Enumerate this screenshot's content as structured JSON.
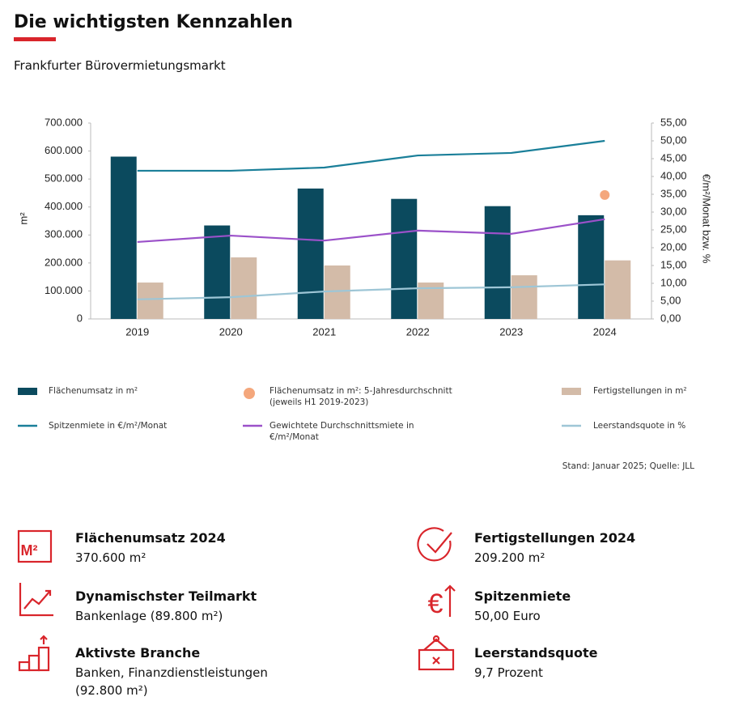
{
  "header": {
    "title": "Die wichtigsten Kennzahlen",
    "subtitle": "Frankfurter Bürovermietungsmarkt"
  },
  "chart_data": {
    "type": "bar",
    "categories": [
      "2019",
      "2020",
      "2021",
      "2022",
      "2023",
      "2024"
    ],
    "ylabel": "m²",
    "y2label": "€/m²/Monat bzw. %",
    "ylim": [
      0,
      700000
    ],
    "yticks": [
      0,
      {
        "value": 100000,
        "label": "100.000"
      },
      {
        "value": 200000,
        "label": "200.000"
      },
      {
        "value": 300000,
        "label": "300.000"
      },
      {
        "value": 400000,
        "label": "400.000"
      },
      {
        "value": 500000,
        "label": "500.000"
      },
      {
        "value": 600000,
        "label": "600.000"
      },
      {
        "value": 700000,
        "label": "700.000"
      }
    ],
    "y2lim": [
      0,
      55
    ],
    "y2ticks": [
      {
        "value": 0,
        "label": "0,00"
      },
      {
        "value": 5,
        "label": "5,00"
      },
      {
        "value": 10,
        "label": "10,00"
      },
      {
        "value": 15,
        "label": "15,00"
      },
      {
        "value": 20,
        "label": "20,00"
      },
      {
        "value": 25,
        "label": "25,00"
      },
      {
        "value": 30,
        "label": "30,00"
      },
      {
        "value": 35,
        "label": "35,00"
      },
      {
        "value": 40,
        "label": "40,00"
      },
      {
        "value": 45,
        "label": "45,00"
      },
      {
        "value": 50,
        "label": "50,00"
      },
      {
        "value": 55,
        "label": "55,00"
      }
    ],
    "series": [
      {
        "name": "Flächenumsatz in m²",
        "type": "bar",
        "color": "#0b4a5e",
        "values": [
          580000,
          334000,
          466000,
          429000,
          403000,
          370600
        ]
      },
      {
        "name": "Flächenumsatz in m²: 5-Jahresdurchschnitt (jeweils H1 2019-2023)",
        "type": "scatter",
        "color": "#f4a77c",
        "values": [
          null,
          null,
          null,
          null,
          null,
          443000
        ]
      },
      {
        "name": "Fertigstellungen  in m²",
        "type": "bar",
        "color": "#d3bba8",
        "values": [
          130000,
          220000,
          191000,
          130000,
          156000,
          209200
        ]
      },
      {
        "name": "Spitzenmiete in €/m²/Monat",
        "type": "line",
        "axis": "y2",
        "color": "#1a7f99",
        "values": [
          41.6,
          41.6,
          42.5,
          45.9,
          46.6,
          50
        ]
      },
      {
        "name": "Gewichtete Durchschnittsmiete in €/m²/Monat",
        "type": "line",
        "axis": "y2",
        "color": "#9b51c9",
        "values": [
          21.6,
          23.4,
          22,
          24.8,
          23.9,
          28
        ]
      },
      {
        "name": "Leerstandsquote  in %",
        "type": "line",
        "axis": "y2",
        "color": "#9ec6d6",
        "values": [
          5.5,
          6.1,
          7.7,
          8.6,
          8.9,
          9.7
        ]
      }
    ]
  },
  "source": "Stand: Januar 2025; Quelle: JLL",
  "kpis": [
    {
      "title": "Flächenumsatz 2024",
      "value": "370.600 m²"
    },
    {
      "title": "Fertigstellungen 2024",
      "value": "209.200 m²"
    },
    {
      "title": "Dynamischster Teilmarkt",
      "value": "Bankenlage (89.800 m²)"
    },
    {
      "title": "Spitzenmiete",
      "value": "50,00 Euro"
    },
    {
      "title": "Aktivste Branche",
      "value": "Banken, Finanzdienstleistungen (92.800 m²)"
    },
    {
      "title": "Leerstandsquote",
      "value": "9,7 Prozent"
    }
  ]
}
